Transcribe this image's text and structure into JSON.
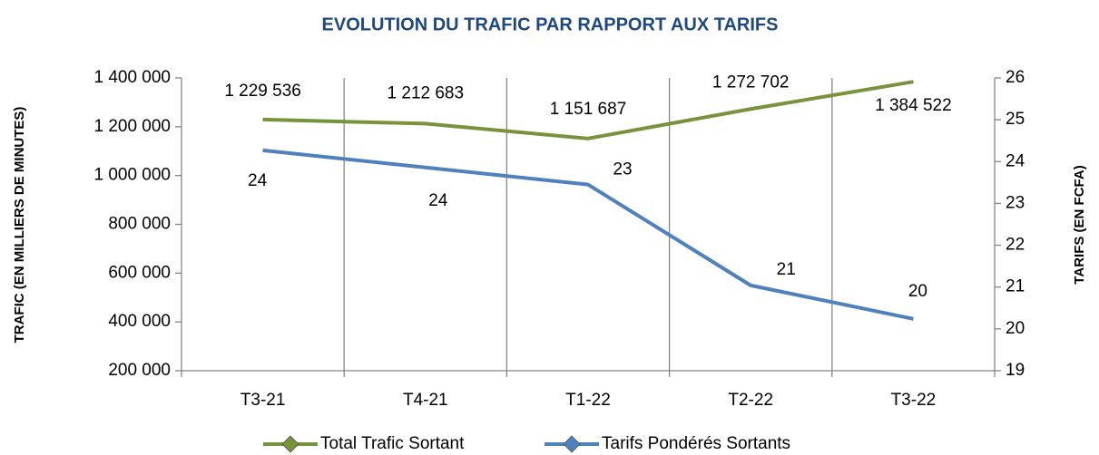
{
  "chart_data": {
    "type": "line",
    "title": "EVOLUTION DU TRAFIC PAR RAPPORT AUX TARIFS",
    "y_label": "TRAFIC (EN MILLIERS DE MINUTES)",
    "y2_label": "TARIFS (EN FCFA)",
    "categories": [
      "T3-21",
      "T4-21",
      "T1-22",
      "T2-22",
      "T3-22"
    ],
    "series": [
      {
        "name": "Total Trafic Sortant",
        "color": "#77933c",
        "values": [
          1229536,
          1212683,
          1151687,
          1272702,
          1384522
        ],
        "value_labels": [
          "1 229 536",
          "1 212 683",
          "1 151 687",
          "1 272 702",
          "1 384 522"
        ]
      },
      {
        "name": "Tarifs Pondérés Sortants",
        "color": "#4f81bd",
        "axis": "y2",
        "values": [
          24.27,
          23.86,
          23.45,
          21.04,
          20.24
        ],
        "value_labels": [
          "24",
          "24",
          "23",
          "21",
          "20"
        ]
      }
    ],
    "ylim": [
      200000,
      1400000
    ],
    "yticks": [
      {
        "value": 200000,
        "label": "200 000"
      },
      {
        "value": 400000,
        "label": "400 000"
      },
      {
        "value": 600000,
        "label": "600 000"
      },
      {
        "value": 800000,
        "label": "800 000"
      },
      {
        "value": 1000000,
        "label": "1 000 000"
      },
      {
        "value": 1200000,
        "label": "1 200 000"
      },
      {
        "value": 1400000,
        "label": "1 400 000"
      }
    ],
    "y2lim": [
      19,
      26
    ],
    "y2ticks": [
      19,
      20,
      21,
      22,
      23,
      24,
      25,
      26
    ],
    "legend": "bottom"
  }
}
